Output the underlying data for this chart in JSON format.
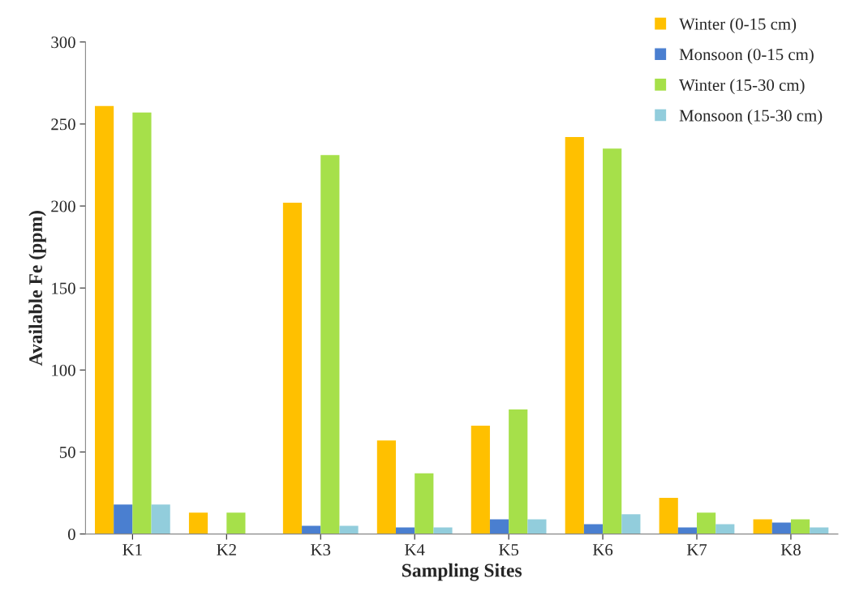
{
  "chart_data": {
    "type": "bar",
    "xlabel": "Sampling Sites",
    "ylabel": "Available Fe (ppm)",
    "categories": [
      "K1",
      "K2",
      "K3",
      "K4",
      "K5",
      "K6",
      "K7",
      "K8"
    ],
    "series": [
      {
        "name": "Winter (0-15 cm)",
        "color": "#ffc000",
        "values": [
          261,
          13,
          202,
          57,
          66,
          242,
          22,
          9
        ]
      },
      {
        "name": "Monsoon (0-15 cm)",
        "color": "#4a7fd0",
        "values": [
          18,
          null,
          5,
          4,
          9,
          6,
          4,
          7
        ]
      },
      {
        "name": "Winter (15-30 cm)",
        "color": "#a6e04a",
        "values": [
          257,
          13,
          231,
          37,
          76,
          235,
          13,
          9
        ]
      },
      {
        "name": "Monsoon (15-30 cm)",
        "color": "#92cddc",
        "values": [
          18,
          null,
          5,
          4,
          9,
          12,
          6,
          4
        ]
      }
    ],
    "ylim": [
      0,
      300
    ],
    "yticks": [
      0,
      50,
      100,
      150,
      200,
      250,
      300
    ],
    "grid": false,
    "legend": "top right"
  }
}
